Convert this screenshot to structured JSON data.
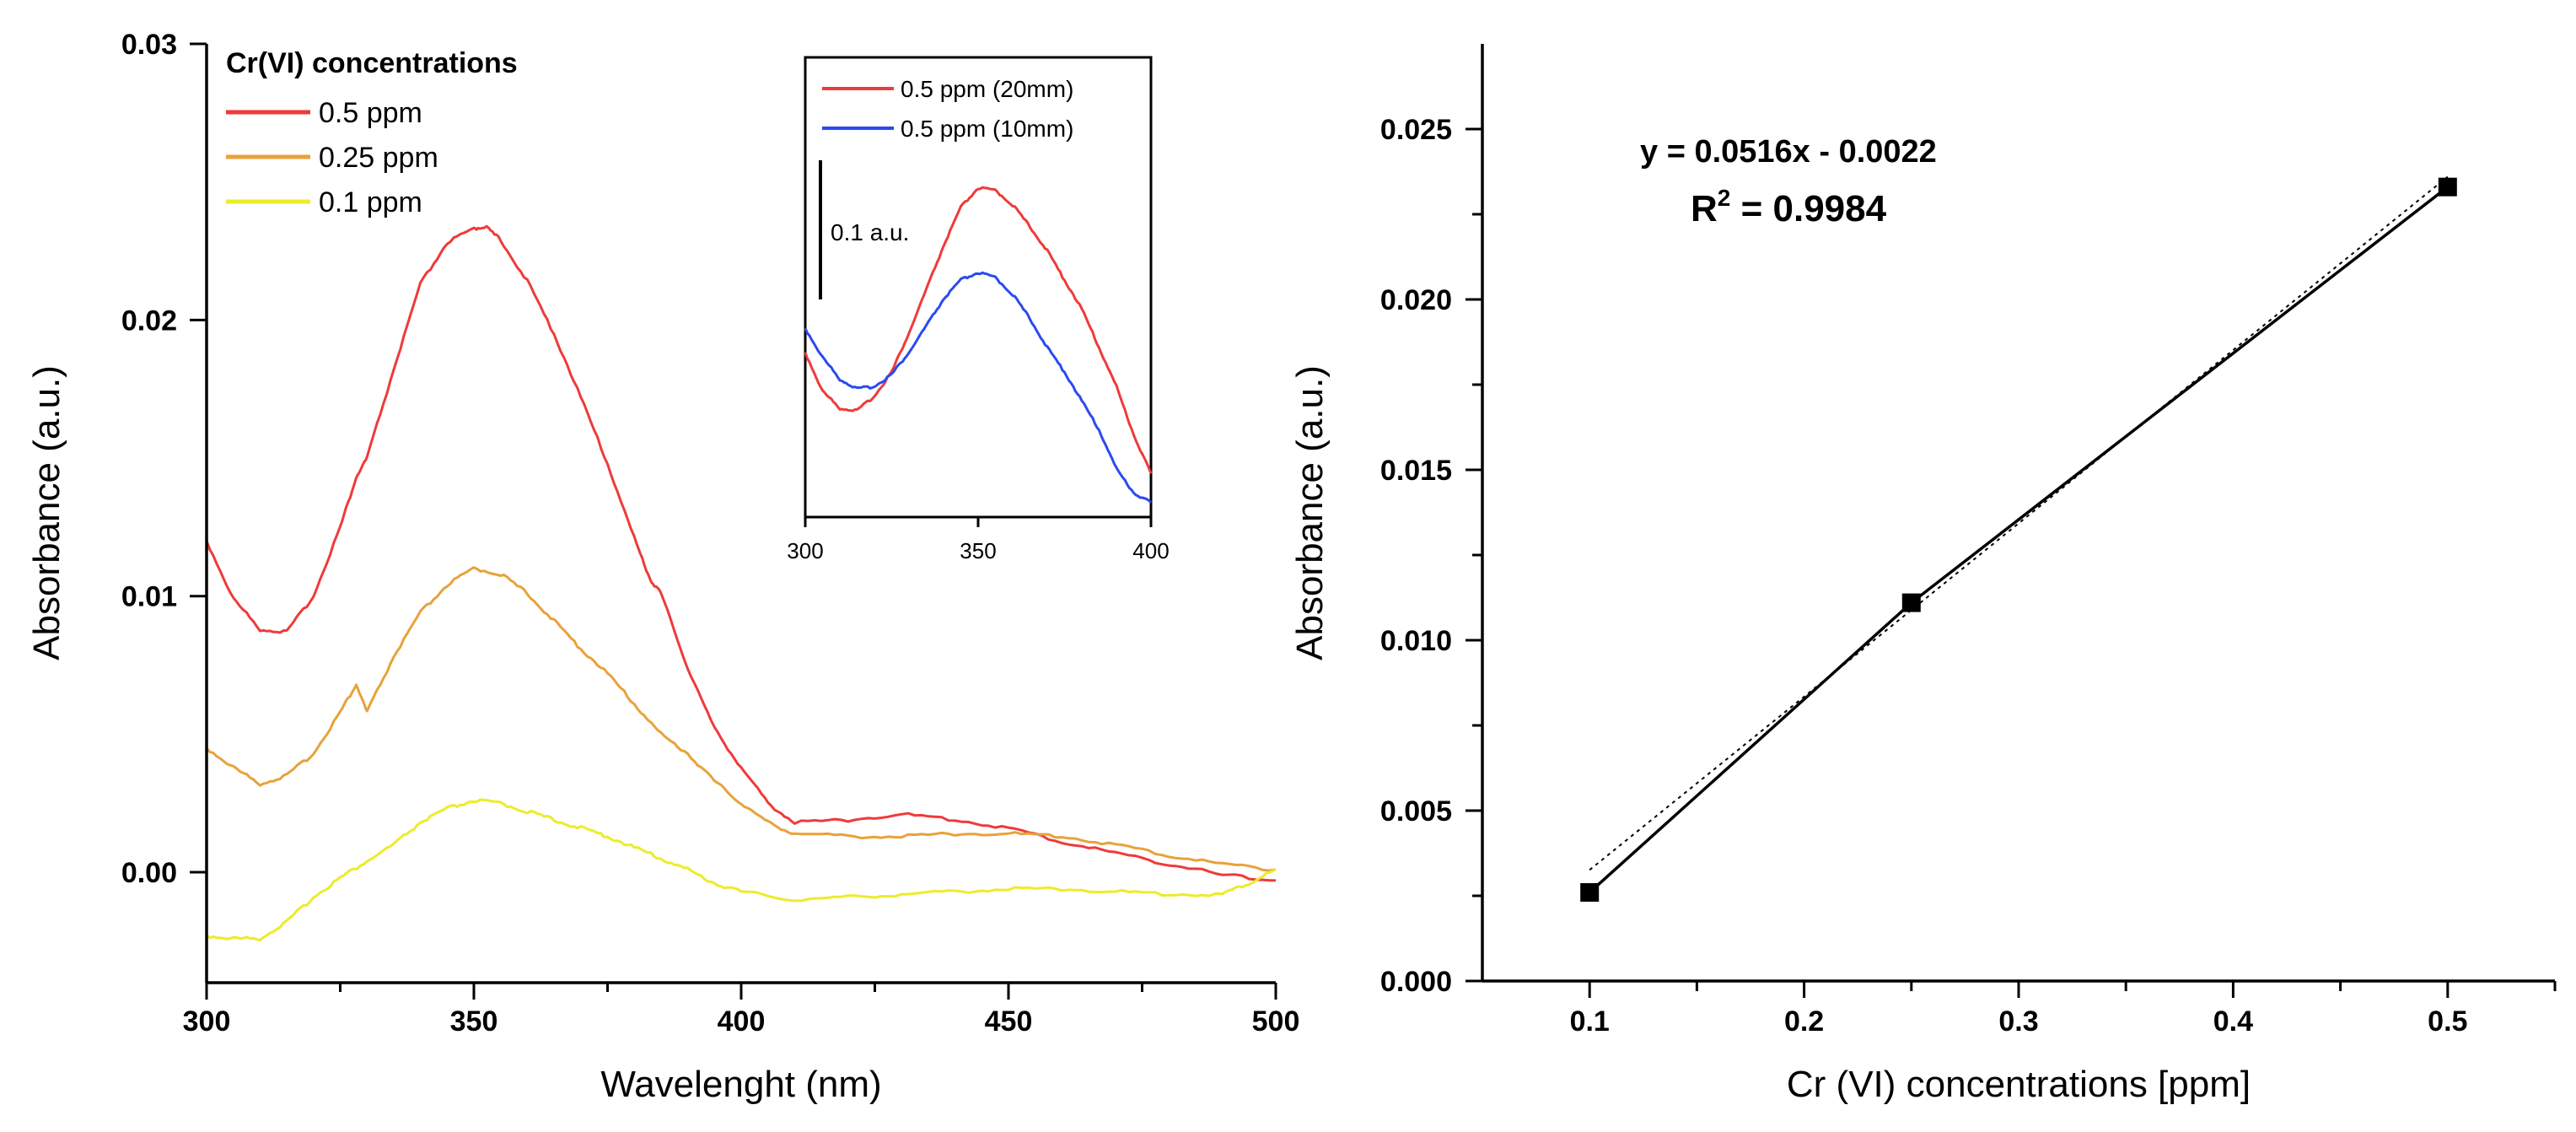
{
  "colors": {
    "red": "#ef3a3a",
    "orange": "#e8a23a",
    "yellow": "#ecec2a",
    "blue": "#2a4af0",
    "black": "#000000"
  },
  "chart_data": [
    {
      "id": "spectra",
      "type": "line",
      "title": "",
      "xlabel": "Wavelenght (nm)",
      "ylabel": "Absorbance (a.u.)",
      "xlim": [
        300,
        500
      ],
      "ylim": [
        -0.004,
        0.03
      ],
      "xticks": [
        "300",
        "350",
        "400",
        "450",
        "500"
      ],
      "yticks": [
        "0.00",
        "0.01",
        "0.02",
        "0.03"
      ],
      "legend": {
        "title": "Cr(VI) concentrations",
        "position": "top-left"
      },
      "series": [
        {
          "name": "0.5 ppm",
          "color": "#ef3a3a",
          "x": [
            300,
            305,
            310,
            315,
            320,
            325,
            328,
            330,
            335,
            340,
            345,
            350,
            352,
            355,
            360,
            365,
            370,
            375,
            380,
            383,
            385,
            390,
            395,
            400,
            405,
            410,
            420,
            430,
            440,
            450,
            460,
            470,
            480,
            490,
            500
          ],
          "y": [
            0.012,
            0.0099,
            0.0088,
            0.0087,
            0.01,
            0.0125,
            0.0143,
            0.015,
            0.0182,
            0.0213,
            0.0228,
            0.0233,
            0.0234,
            0.0229,
            0.0214,
            0.0195,
            0.0172,
            0.0148,
            0.0121,
            0.0106,
            0.0101,
            0.0074,
            0.0052,
            0.0038,
            0.0025,
            0.0018,
            0.0019,
            0.0021,
            0.0019,
            0.0016,
            0.0011,
            0.0007,
            0.0003,
            -0.0001,
            -0.0003
          ]
        },
        {
          "name": "0.25 ppm",
          "color": "#e8a23a",
          "x": [
            300,
            305,
            310,
            315,
            320,
            325,
            328,
            330,
            335,
            340,
            345,
            350,
            355,
            360,
            365,
            370,
            375,
            380,
            385,
            390,
            395,
            400,
            405,
            410,
            420,
            430,
            440,
            450,
            460,
            470,
            480,
            490,
            500
          ],
          "y": [
            0.0045,
            0.0038,
            0.0032,
            0.0035,
            0.0043,
            0.0058,
            0.0068,
            0.0058,
            0.0078,
            0.0094,
            0.0104,
            0.011,
            0.0108,
            0.0101,
            0.0091,
            0.0081,
            0.0072,
            0.0061,
            0.005,
            0.0043,
            0.0033,
            0.0025,
            0.0018,
            0.0014,
            0.0013,
            0.0013,
            0.0014,
            0.0014,
            0.0013,
            0.001,
            0.0006,
            0.0003,
            0.0001
          ]
        },
        {
          "name": "0.1 ppm",
          "color": "#ecec2a",
          "x": [
            300,
            305,
            310,
            315,
            320,
            325,
            330,
            335,
            340,
            345,
            350,
            355,
            360,
            365,
            370,
            375,
            380,
            385,
            390,
            395,
            400,
            410,
            420,
            430,
            440,
            450,
            460,
            470,
            480,
            490,
            495,
            500
          ],
          "y": [
            -0.0023,
            -0.0024,
            -0.0024,
            -0.0018,
            -0.0009,
            -0.0002,
            0.0004,
            0.001,
            0.0018,
            0.0023,
            0.0026,
            0.0025,
            0.0022,
            0.0019,
            0.0016,
            0.0013,
            0.0009,
            0.0005,
            0.0001,
            -0.0004,
            -0.0007,
            -0.001,
            -0.0009,
            -0.0008,
            -0.0007,
            -0.0006,
            -0.0006,
            -0.0007,
            -0.0008,
            -0.0008,
            -0.0004,
            0.0001
          ]
        }
      ],
      "inset": {
        "xlim": [
          300,
          400
        ],
        "xticks": [
          "300",
          "350",
          "400"
        ],
        "scale_bar_label": "0.1 a.u.",
        "series": [
          {
            "name": "0.5 ppm (20mm)",
            "color": "#ef3a3a",
            "x": [
              300,
              305,
              310,
              315,
              320,
              325,
              330,
              335,
              340,
              345,
              350,
              355,
              360,
              365,
              370,
              375,
              380,
              385,
              390,
              395,
              400
            ],
            "y": [
              0.29,
              0.21,
              0.175,
              0.17,
              0.2,
              0.25,
              0.33,
              0.42,
              0.51,
              0.59,
              0.63,
              0.625,
              0.595,
              0.55,
              0.5,
              0.44,
              0.38,
              0.3,
              0.22,
              0.12,
              0.04
            ]
          },
          {
            "name": "0.5 ppm (10mm)",
            "color": "#2a4af0",
            "x": [
              300,
              305,
              310,
              315,
              320,
              325,
              330,
              335,
              340,
              345,
              350,
              355,
              360,
              365,
              370,
              375,
              380,
              385,
              390,
              395,
              400
            ],
            "y": [
              0.34,
              0.28,
              0.235,
              0.215,
              0.22,
              0.245,
              0.29,
              0.345,
              0.4,
              0.44,
              0.455,
              0.445,
              0.41,
              0.36,
              0.3,
              0.25,
              0.19,
              0.13,
              0.05,
              0.0,
              -0.02
            ]
          }
        ]
      }
    },
    {
      "id": "calibration",
      "type": "scatter",
      "title": "",
      "xlabel": "Cr (VI) concentrations [ppm]",
      "ylabel": "Absorbance (a.u.)",
      "xlim": [
        0.05,
        0.55
      ],
      "ylim": [
        0.0,
        0.0275
      ],
      "xticks": [
        "0.1",
        "0.2",
        "0.3",
        "0.4",
        "0.5"
      ],
      "yticks": [
        "0.000",
        "0.005",
        "0.010",
        "0.015",
        "0.020",
        "0.025"
      ],
      "x": [
        0.1,
        0.25,
        0.5
      ],
      "y": [
        0.0026,
        0.0111,
        0.0233
      ],
      "fit": {
        "slope": 0.0516,
        "intercept": -0.0022
      },
      "equation": "y = 0.0516x - 0.0022",
      "r2_label": "R",
      "r2_exp": "2",
      "r2_value": " = 0.9984"
    }
  ]
}
